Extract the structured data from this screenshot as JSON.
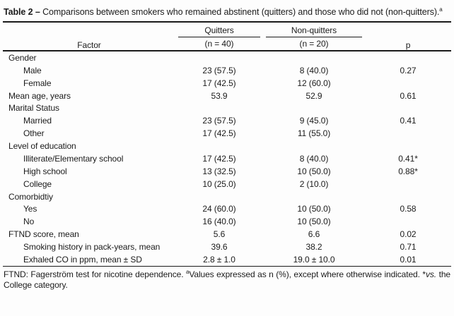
{
  "caption": {
    "label": "Table 2",
    "separator": "–",
    "text": "Comparisons between smokers who remained abstinent (quitters) and those who did not (non-quitters).",
    "superscript": "a"
  },
  "columns": {
    "factor": "Factor",
    "quitters": "Quitters",
    "quitters_n": "(n = 40)",
    "non_quitters": "Non-quitters",
    "non_quitters_n": "(n = 20)",
    "p": "p"
  },
  "rows": [
    {
      "factor": "Gender",
      "indent": false,
      "quitters": "",
      "non_quitters": "",
      "p": ""
    },
    {
      "factor": "Male",
      "indent": true,
      "quitters": "23 (57.5)",
      "non_quitters": "8 (40.0)",
      "p": "0.27"
    },
    {
      "factor": "Female",
      "indent": true,
      "quitters": "17 (42.5)",
      "non_quitters": "12 (60.0)",
      "p": ""
    },
    {
      "factor": "Mean age, years",
      "indent": false,
      "quitters": "53.9",
      "non_quitters": "52.9",
      "p": "0.61"
    },
    {
      "factor": "Marital Status",
      "indent": false,
      "quitters": "",
      "non_quitters": "",
      "p": ""
    },
    {
      "factor": "Married",
      "indent": true,
      "quitters": "23 (57.5)",
      "non_quitters": "9 (45.0)",
      "p": "0.41"
    },
    {
      "factor": "Other",
      "indent": true,
      "quitters": "17 (42.5)",
      "non_quitters": "11 (55.0)",
      "p": ""
    },
    {
      "factor": "Level of education",
      "indent": false,
      "quitters": "",
      "non_quitters": "",
      "p": ""
    },
    {
      "factor": "Illiterate/Elementary school",
      "indent": true,
      "quitters": "17 (42.5)",
      "non_quitters": "8 (40.0)",
      "p": "0.41*"
    },
    {
      "factor": "High school",
      "indent": true,
      "quitters": "13 (32.5)",
      "non_quitters": "10 (50.0)",
      "p": "0.88*"
    },
    {
      "factor": "College",
      "indent": true,
      "quitters": "10 (25.0)",
      "non_quitters": "2 (10.0)",
      "p": ""
    },
    {
      "factor": "Comorbidtiy",
      "indent": false,
      "quitters": "",
      "non_quitters": "",
      "p": ""
    },
    {
      "factor": "Yes",
      "indent": true,
      "quitters": "24 (60.0)",
      "non_quitters": "10 (50.0)",
      "p": "0.58"
    },
    {
      "factor": "No",
      "indent": true,
      "quitters": "16 (40.0)",
      "non_quitters": "10 (50.0)",
      "p": ""
    },
    {
      "factor": "FTND score, mean",
      "indent": false,
      "quitters": "5.6",
      "non_quitters": "6.6",
      "p": "0.02"
    },
    {
      "factor": "Smoking history in pack-years, mean",
      "indent": true,
      "quitters": "39.6",
      "non_quitters": "38.2",
      "p": "0.71"
    },
    {
      "factor": "Exhaled CO in ppm, mean ± SD",
      "indent": true,
      "quitters": "2.8 ± 1.0",
      "non_quitters": "19.0 ± 10.0",
      "p": "0.01"
    }
  ],
  "footnote": {
    "part1": "FTND: Fagerström test for nicotine dependence. ",
    "superscript": "a",
    "part2": "Values expressed as n (%), except where otherwise indicated. *",
    "italic": "vs.",
    "part3": " the College category."
  },
  "colors": {
    "text": "#1b1b1b",
    "rule": "#1a1a1a",
    "background": "#fdfdfd"
  }
}
